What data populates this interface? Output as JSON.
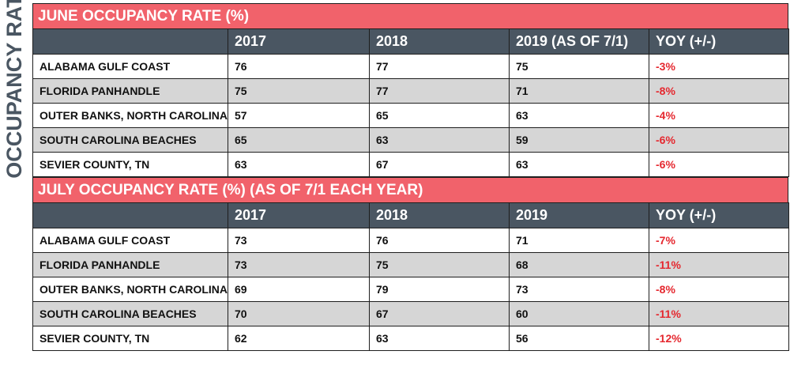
{
  "side_label": "OCCUPANCY RATE",
  "chart_data": [
    {
      "type": "table",
      "title": "JUNE OCCUPANCY RATE (%)",
      "columns": [
        "",
        "2017",
        "2018",
        "2019 (AS OF 7/1)",
        "YOY (+/-)"
      ],
      "rows": [
        {
          "label": "ALABAMA GULF COAST",
          "y2017": "76",
          "y2018": "77",
          "y2019": "75",
          "yoy": "-3%"
        },
        {
          "label": "FLORIDA PANHANDLE",
          "y2017": "75",
          "y2018": "77",
          "y2019": "71",
          "yoy": "-8%"
        },
        {
          "label": "OUTER BANKS, NORTH CAROLINA",
          "y2017": "57",
          "y2018": "65",
          "y2019": "63",
          "yoy": "-4%"
        },
        {
          "label": "SOUTH CAROLINA BEACHES",
          "y2017": "65",
          "y2018": "63",
          "y2019": "59",
          "yoy": "-6%"
        },
        {
          "label": "SEVIER COUNTY, TN",
          "y2017": "63",
          "y2018": "67",
          "y2019": "63",
          "yoy": "-6%"
        }
      ]
    },
    {
      "type": "table",
      "title": "JULY OCCUPANCY RATE (%) (AS OF 7/1 EACH YEAR)",
      "columns": [
        "",
        "2017",
        "2018",
        "2019",
        "YOY (+/-)"
      ],
      "rows": [
        {
          "label": "ALABAMA GULF COAST",
          "y2017": "73",
          "y2018": "76",
          "y2019": "71",
          "yoy": "-7%"
        },
        {
          "label": "FLORIDA PANHANDLE",
          "y2017": "73",
          "y2018": "75",
          "y2019": "68",
          "yoy": "-11%"
        },
        {
          "label": "OUTER BANKS, NORTH CAROLINA",
          "y2017": "69",
          "y2018": "79",
          "y2019": "73",
          "yoy": "-8%"
        },
        {
          "label": "SOUTH CAROLINA BEACHES",
          "y2017": "70",
          "y2018": "67",
          "y2019": "60",
          "yoy": "-11%"
        },
        {
          "label": "SEVIER COUNTY, TN",
          "y2017": "62",
          "y2018": "63",
          "y2019": "56",
          "yoy": "-12%"
        }
      ]
    }
  ],
  "colors": {
    "title_bar": "#f1626b",
    "header_bar": "#4a5662",
    "stripe": "#d6d6d6",
    "negative": "#e5282f"
  }
}
